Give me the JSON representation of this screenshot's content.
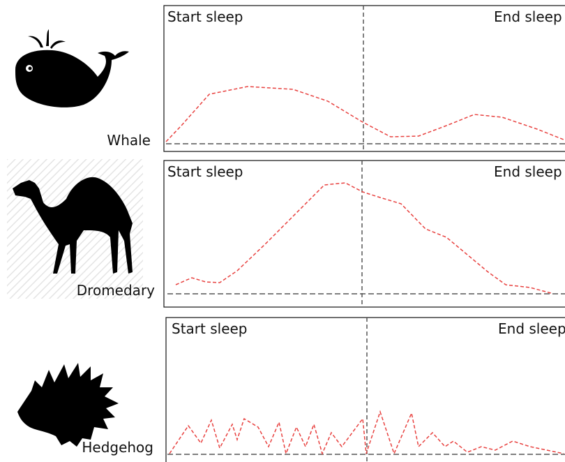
{
  "panels": [
    {
      "animal": "Whale",
      "start": "Start sleep",
      "end": "End sleep"
    },
    {
      "animal": "Dromedary",
      "start": "Start sleep",
      "end": "End sleep"
    },
    {
      "animal": "Hedgehog",
      "start": "Start sleep",
      "end": "End sleep"
    }
  ]
}
